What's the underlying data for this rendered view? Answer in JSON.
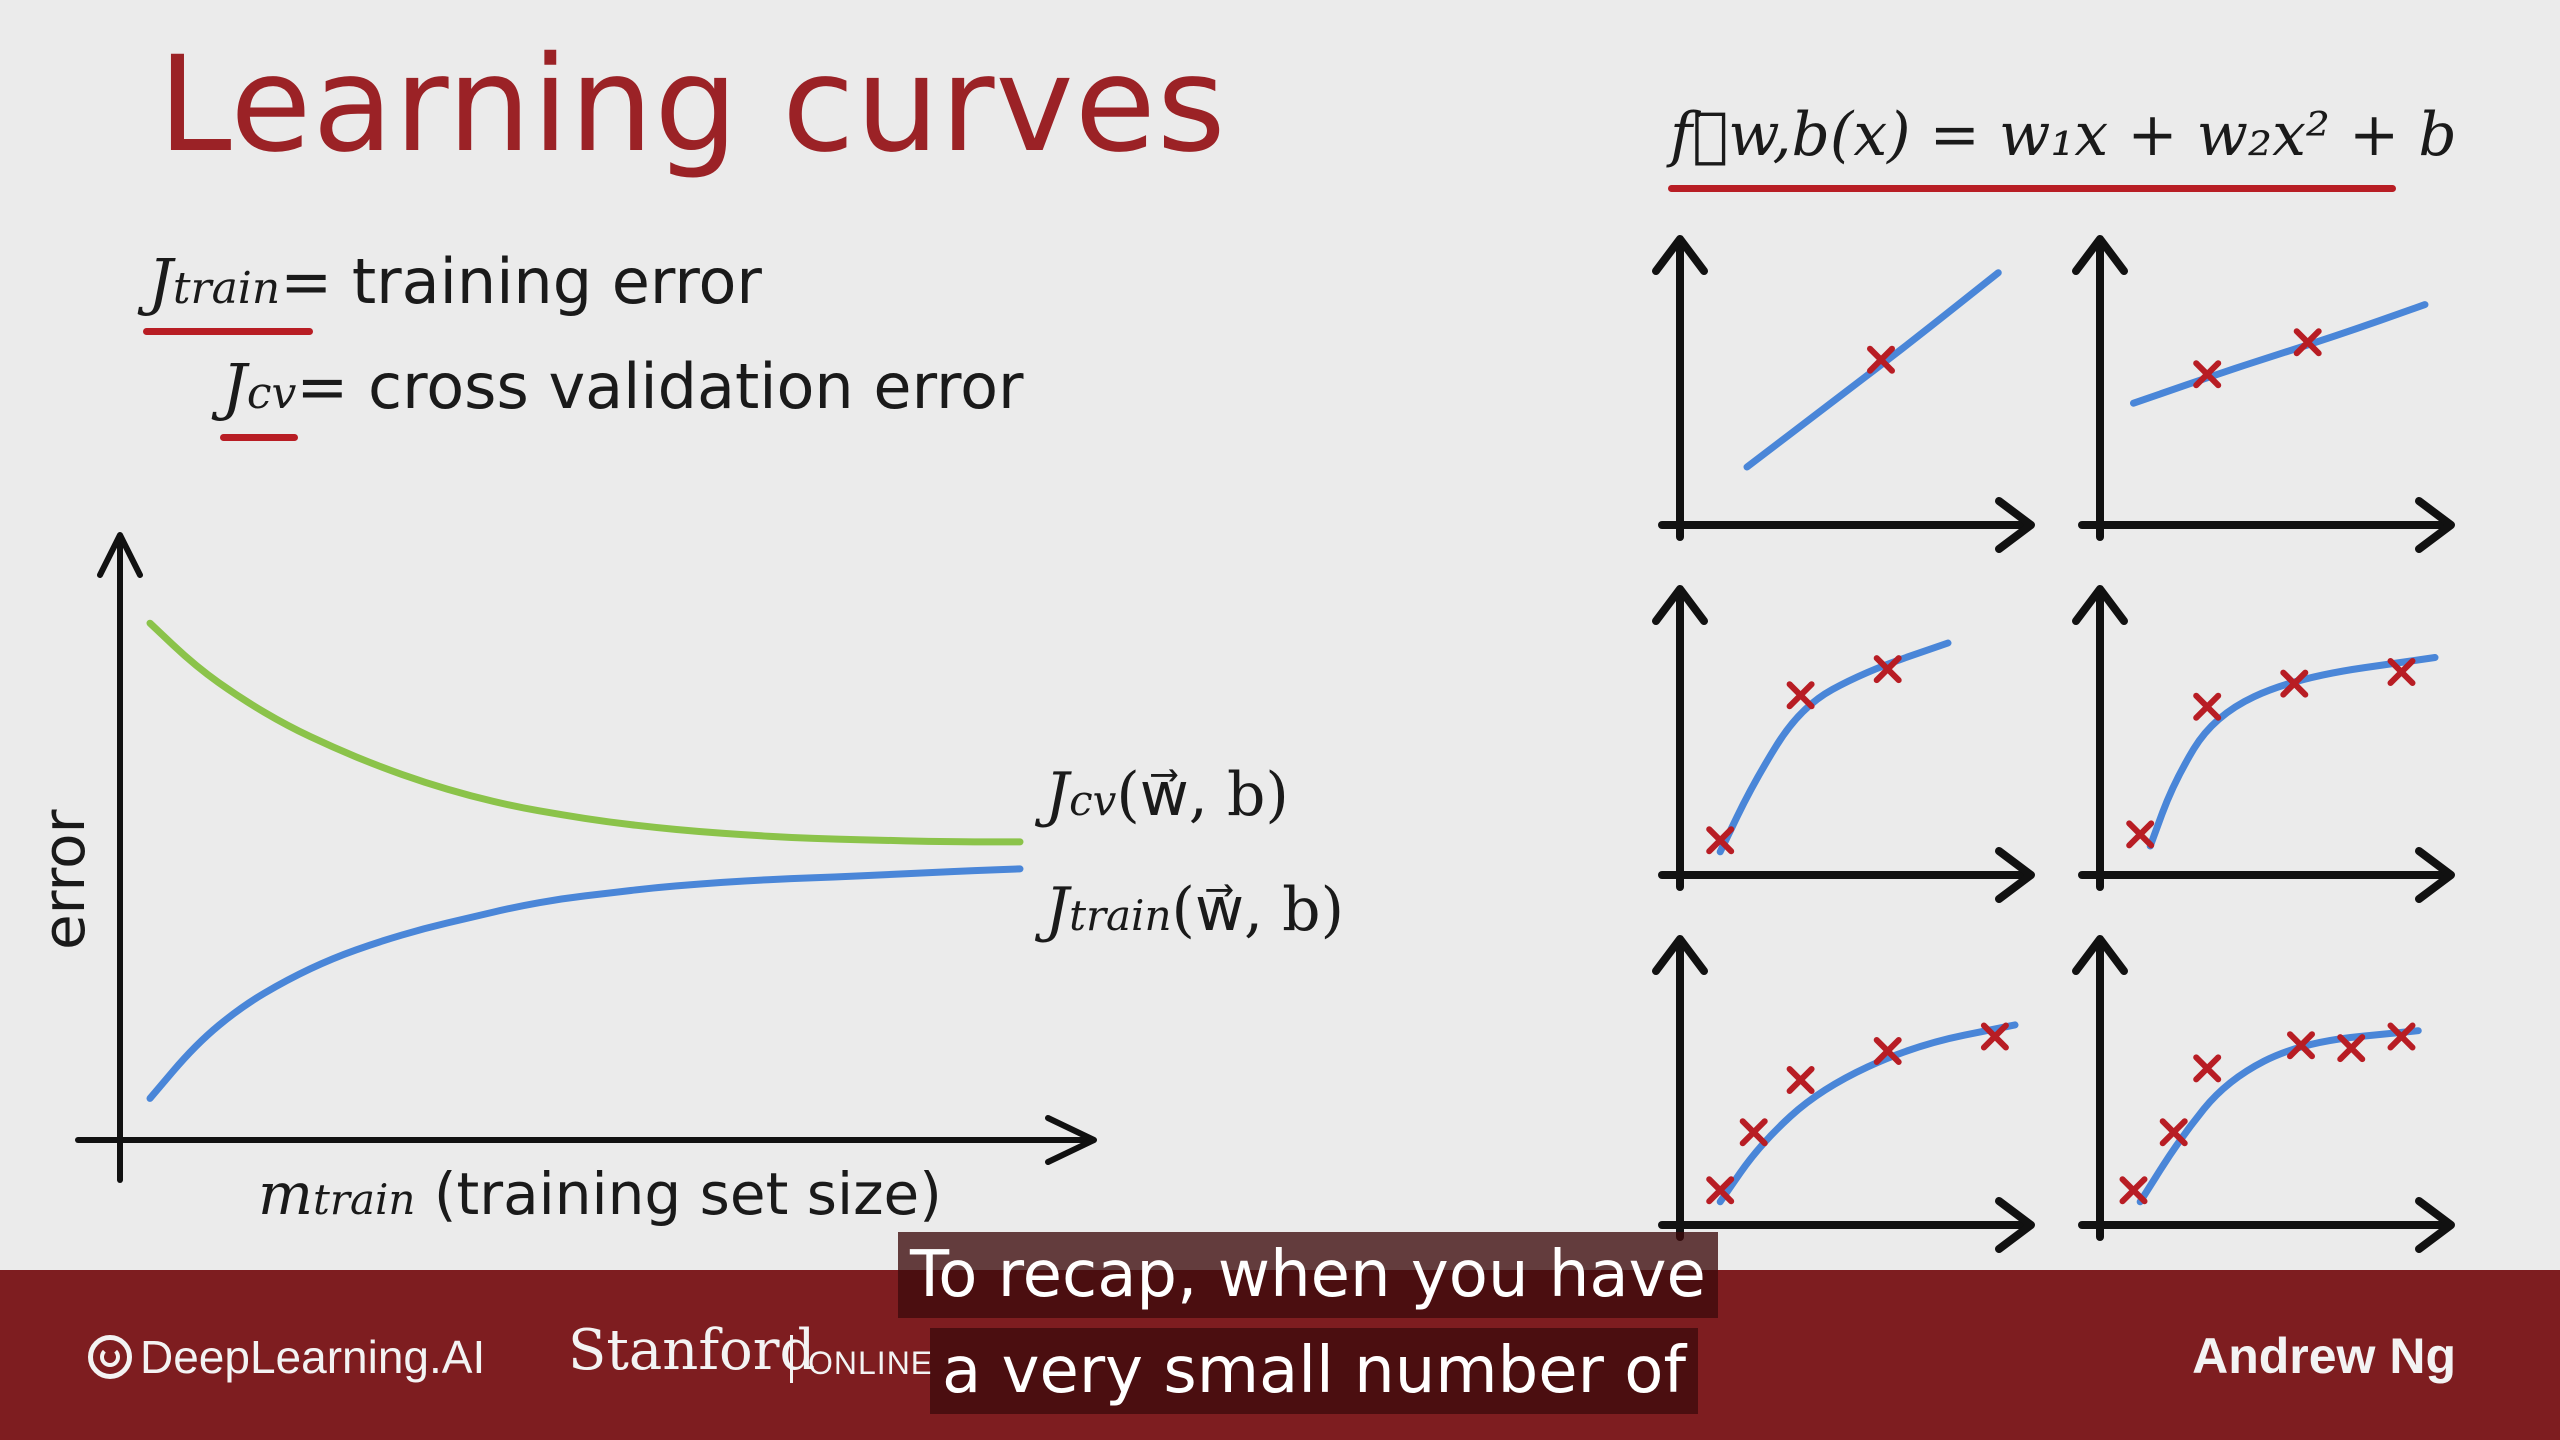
{
  "slide": {
    "title": "Learning curves",
    "definitions": [
      {
        "symbol": "J",
        "subscript": "train",
        "text": "= training error"
      },
      {
        "symbol": "J",
        "subscript": "cv",
        "text": "= cross validation error"
      }
    ],
    "formula": "f⃗w,b(x) = w₁x + w₂x² + b"
  },
  "chart_data": [
    {
      "type": "line",
      "title": "",
      "ylabel": "error",
      "xlabel_symbol": "m",
      "xlabel_subscript": "train",
      "xlabel_text": "(training set size)",
      "grid": false,
      "legend": "inline-right",
      "x": [
        1,
        2,
        3,
        4,
        5,
        6,
        7,
        8,
        9,
        10,
        11,
        12,
        13,
        14,
        15,
        16,
        17,
        18,
        19,
        20
      ],
      "series": [
        {
          "name": "Jcv(w⃗,b)",
          "label_symbol": "J",
          "label_subscript": "cv",
          "label_args": "(w⃗, b)",
          "color": "#8bc34a",
          "values": [
            0.92,
            0.84,
            0.78,
            0.73,
            0.69,
            0.655,
            0.625,
            0.6,
            0.58,
            0.565,
            0.552,
            0.542,
            0.534,
            0.528,
            0.523,
            0.52,
            0.518,
            0.516,
            0.515,
            0.515
          ]
        },
        {
          "name": "Jtrain(w⃗,b)",
          "label_symbol": "J",
          "label_subscript": "train",
          "label_args": "(w⃗, b)",
          "color": "#4a86d8",
          "values": [
            0.04,
            0.14,
            0.21,
            0.26,
            0.3,
            0.33,
            0.355,
            0.375,
            0.395,
            0.41,
            0.42,
            0.43,
            0.437,
            0.443,
            0.447,
            0.45,
            0.454,
            0.458,
            0.462,
            0.465
          ]
        }
      ],
      "ylim": [
        0,
        1
      ]
    },
    {
      "type": "scatter",
      "layout": "grid-3x2",
      "panels": [
        {
          "points": [
            [
              0.6,
              0.57
            ]
          ],
          "fit": [
            [
              0.2,
              0.2
            ],
            [
              0.45,
              0.42
            ],
            [
              0.7,
              0.64
            ],
            [
              0.95,
              0.87
            ]
          ]
        },
        {
          "points": [
            [
              0.32,
              0.52
            ],
            [
              0.62,
              0.63
            ]
          ],
          "fit": [
            [
              0.1,
              0.42
            ],
            [
              0.4,
              0.54
            ],
            [
              0.7,
              0.65
            ],
            [
              0.97,
              0.76
            ]
          ]
        },
        {
          "points": [
            [
              0.12,
              0.12
            ],
            [
              0.36,
              0.62
            ],
            [
              0.62,
              0.71
            ]
          ],
          "fit": [
            [
              0.12,
              0.08
            ],
            [
              0.22,
              0.32
            ],
            [
              0.36,
              0.58
            ],
            [
              0.55,
              0.7
            ],
            [
              0.8,
              0.8
            ]
          ]
        },
        {
          "points": [
            [
              0.12,
              0.14
            ],
            [
              0.32,
              0.58
            ],
            [
              0.58,
              0.66
            ],
            [
              0.9,
              0.7
            ]
          ],
          "fit": [
            [
              0.15,
              0.1
            ],
            [
              0.22,
              0.32
            ],
            [
              0.34,
              0.55
            ],
            [
              0.58,
              0.68
            ],
            [
              1.0,
              0.75
            ]
          ]
        },
        {
          "points": [
            [
              0.12,
              0.12
            ],
            [
              0.22,
              0.32
            ],
            [
              0.36,
              0.5
            ],
            [
              0.62,
              0.6
            ],
            [
              0.94,
              0.65
            ]
          ],
          "fit": [
            [
              0.12,
              0.08
            ],
            [
              0.24,
              0.28
            ],
            [
              0.42,
              0.47
            ],
            [
              0.7,
              0.62
            ],
            [
              1.0,
              0.69
            ]
          ]
        },
        {
          "points": [
            [
              0.1,
              0.12
            ],
            [
              0.22,
              0.32
            ],
            [
              0.32,
              0.54
            ],
            [
              0.6,
              0.62
            ],
            [
              0.75,
              0.61
            ],
            [
              0.9,
              0.65
            ]
          ],
          "fit": [
            [
              0.12,
              0.08
            ],
            [
              0.24,
              0.3
            ],
            [
              0.38,
              0.5
            ],
            [
              0.6,
              0.63
            ],
            [
              0.95,
              0.67
            ]
          ]
        }
      ],
      "fit_color": "#4a86d8",
      "point_color": "#b81d24"
    }
  ],
  "footer": {
    "brand": "DeepLearning.AI",
    "partner": "Stanford",
    "partner_suffix": "ONLINE",
    "author": "Andrew Ng"
  },
  "captions": [
    "To recap, when you have",
    "a very small number of"
  ]
}
